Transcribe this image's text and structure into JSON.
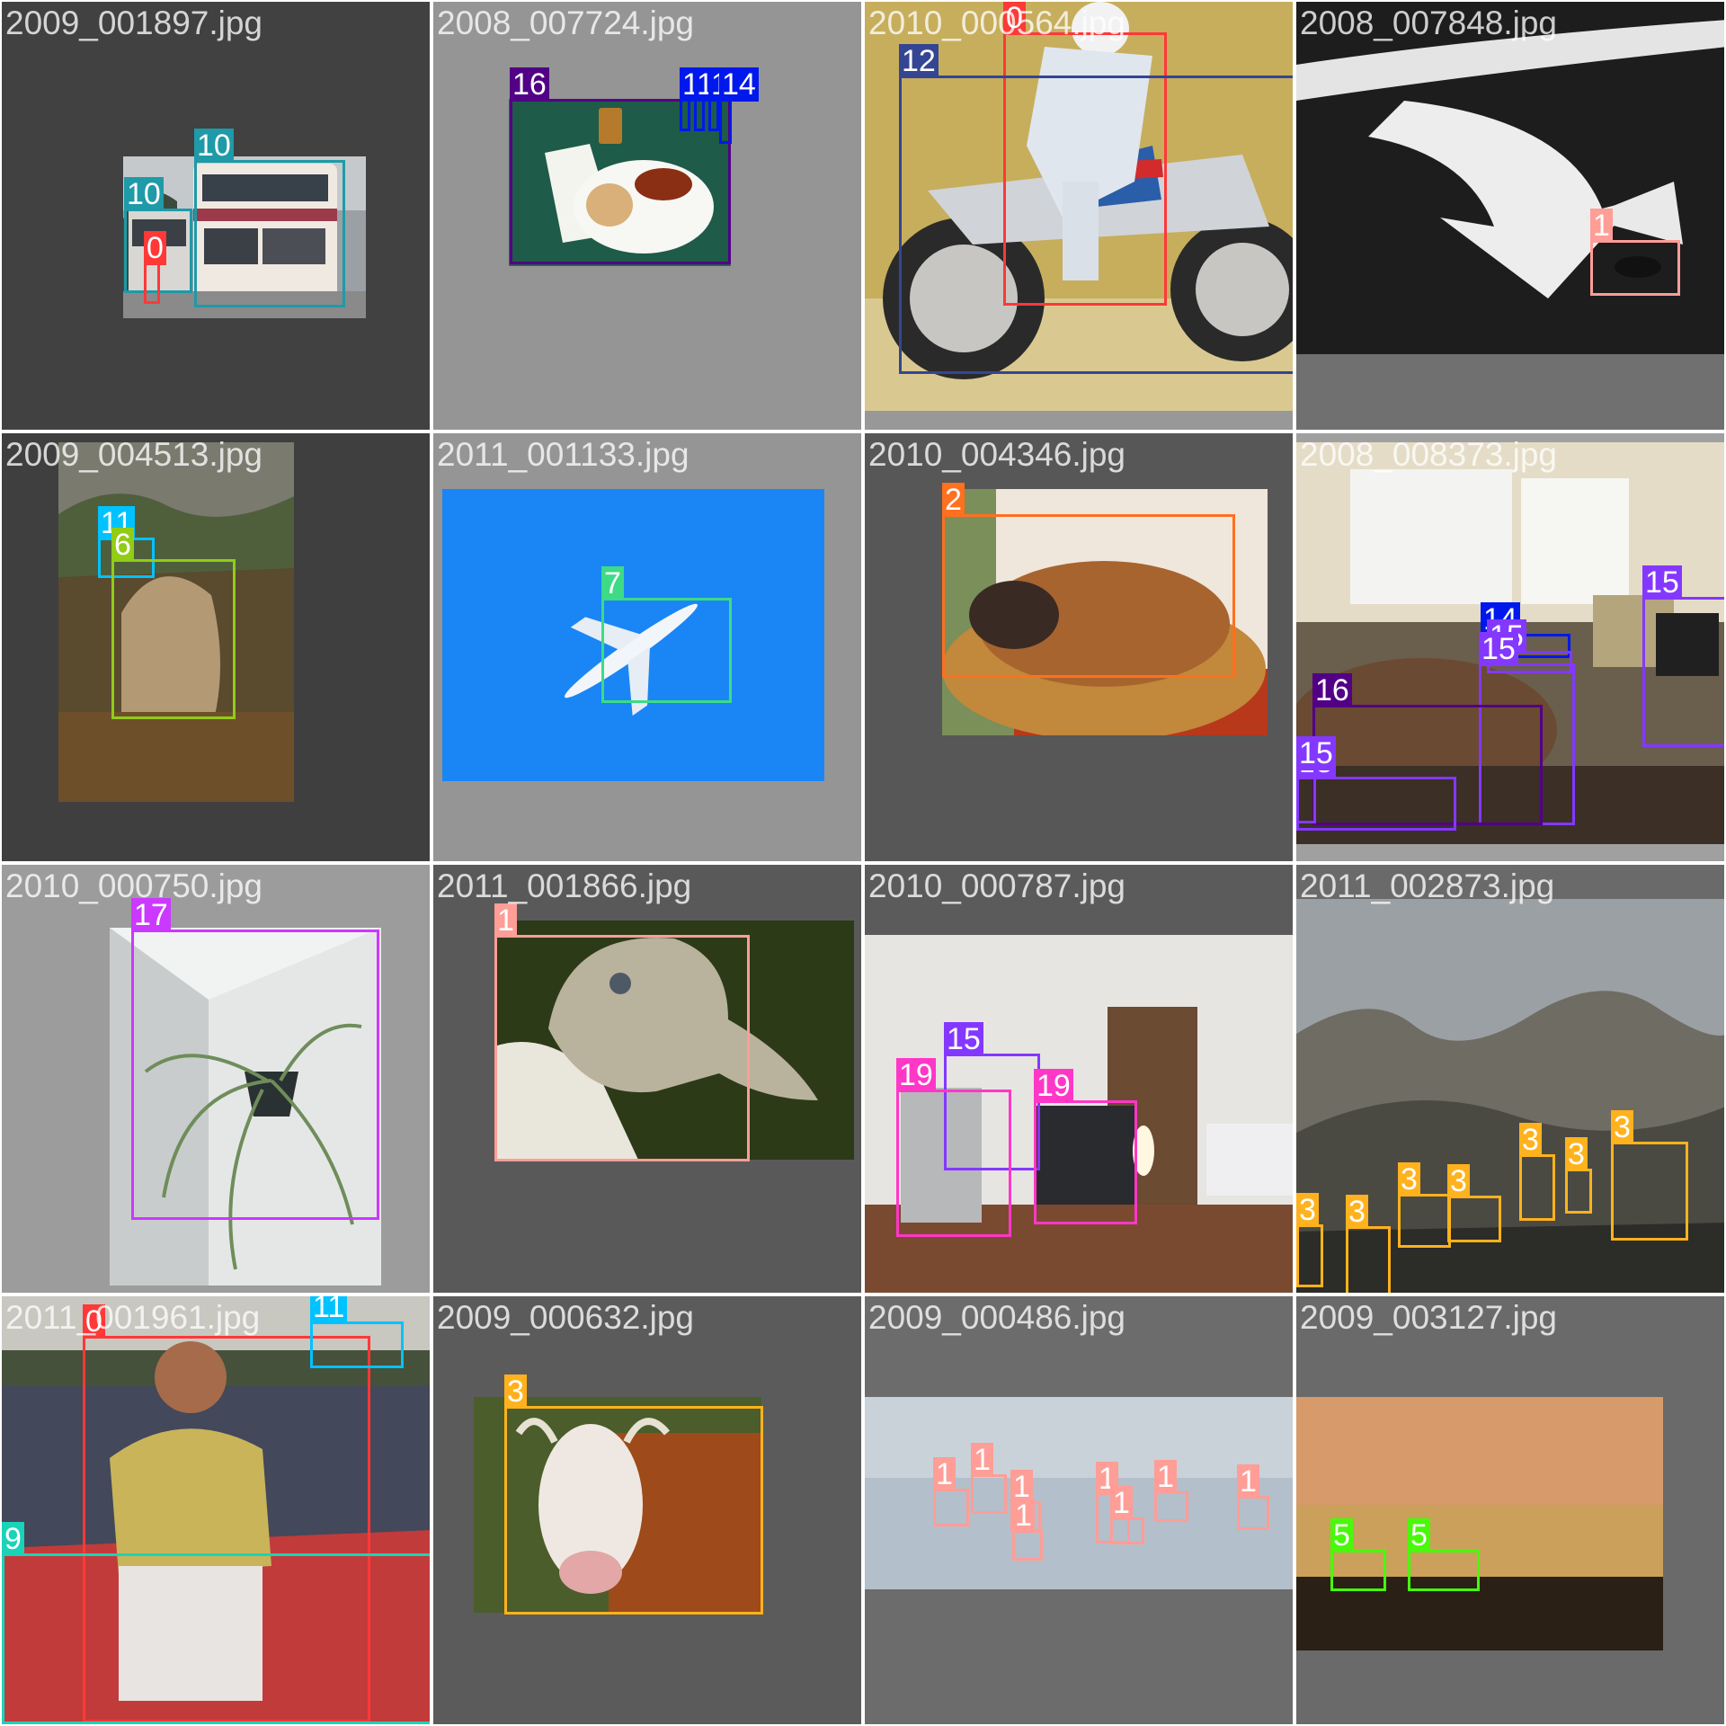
{
  "tiles": [
    {
      "filename": "2009_001897.jpg",
      "bg": "#414141",
      "photo": {
        "scene": "bus"
      },
      "boxes": [
        {
          "label": "10",
          "color": "#1e9aa8"
        },
        {
          "label": "10",
          "color": "#1e9aa8"
        },
        {
          "label": "0",
          "color": "#ff3838"
        }
      ]
    },
    {
      "filename": "2008_007724.jpg",
      "bg": "#959595",
      "photo": {
        "scene": "food"
      },
      "boxes": [
        {
          "label": "16",
          "color": "#520085"
        },
        {
          "label": "14",
          "color": "#0018ec"
        },
        {
          "label": "14",
          "color": "#0018ec"
        },
        {
          "label": "14",
          "color": "#0018ec"
        },
        {
          "label": "14",
          "color": "#0018ec"
        }
      ]
    },
    {
      "filename": "2010_000564.jpg",
      "bg": "#989898",
      "photo": {
        "scene": "motorbike"
      },
      "boxes": [
        {
          "label": "0",
          "color": "#ff3838"
        },
        {
          "label": "12",
          "color": "#344593"
        }
      ]
    },
    {
      "filename": "2008_007848.jpg",
      "bg": "#707070",
      "photo": {
        "scene": "road"
      },
      "boxes": [
        {
          "label": "1",
          "color": "#ff9d97"
        }
      ]
    },
    {
      "filename": "2009_004513.jpg",
      "bg": "#3f3f3f",
      "photo": {
        "scene": "rocks"
      },
      "boxes": [
        {
          "label": "11",
          "color": "#00c2ff"
        },
        {
          "label": "6",
          "color": "#92cc17"
        }
      ]
    },
    {
      "filename": "2011_001133.jpg",
      "bg": "#959595",
      "photo": {
        "scene": "sky"
      },
      "boxes": [
        {
          "label": "7",
          "color": "#3ddb86"
        }
      ]
    },
    {
      "filename": "2010_004346.jpg",
      "bg": "#575757",
      "photo": {
        "scene": "cat"
      },
      "boxes": [
        {
          "label": "2",
          "color": "#ff701f"
        }
      ]
    },
    {
      "filename": "2008_008373.jpg",
      "bg": "#a0a0a0",
      "photo": {
        "scene": "office"
      },
      "boxes": [
        {
          "label": "15",
          "color": "#8438ff"
        },
        {
          "label": "14",
          "color": "#0018ec"
        },
        {
          "label": "15",
          "color": "#8438ff"
        },
        {
          "label": "15",
          "color": "#8438ff"
        },
        {
          "label": "16",
          "color": "#520085"
        },
        {
          "label": "15",
          "color": "#8438ff"
        },
        {
          "label": "15",
          "color": "#8438ff"
        }
      ]
    },
    {
      "filename": "2010_000750.jpg",
      "bg": "#9c9c9c",
      "photo": {
        "scene": "plant"
      },
      "boxes": [
        {
          "label": "17",
          "color": "#cb38ff"
        }
      ]
    },
    {
      "filename": "2011_001866.jpg",
      "bg": "#595959",
      "photo": {
        "scene": "bird"
      },
      "boxes": [
        {
          "label": "1",
          "color": "#ff9d97"
        }
      ]
    },
    {
      "filename": "2010_000787.jpg",
      "bg": "#5b5b5b",
      "photo": {
        "scene": "desk"
      },
      "boxes": [
        {
          "label": "15",
          "color": "#8438ff"
        },
        {
          "label": "19",
          "color": "#ff37c7"
        },
        {
          "label": "19",
          "color": "#ff37c7"
        }
      ]
    },
    {
      "filename": "2011_002873.jpg",
      "bg": "#6a6a6a",
      "photo": {
        "scene": "mountains"
      },
      "boxes": [
        {
          "label": "3",
          "color": "#ffb21d"
        },
        {
          "label": "3",
          "color": "#ffb21d"
        },
        {
          "label": "3",
          "color": "#ffb21d"
        },
        {
          "label": "3",
          "color": "#ffb21d"
        },
        {
          "label": "3",
          "color": "#ffb21d"
        },
        {
          "label": "3",
          "color": "#ffb21d"
        },
        {
          "label": "3",
          "color": "#ffb21d"
        }
      ]
    },
    {
      "filename": "2011_001961.jpg",
      "bg": "#6a6a6a",
      "photo": {
        "scene": "canoe"
      },
      "boxes": [
        {
          "label": "0",
          "color": "#ff3838"
        },
        {
          "label": "11",
          "color": "#00c2ff"
        },
        {
          "label": "9",
          "color": "#1ad3b8"
        }
      ]
    },
    {
      "filename": "2009_000632.jpg",
      "bg": "#5b5b5b",
      "photo": {
        "scene": "cow"
      },
      "boxes": [
        {
          "label": "3",
          "color": "#ffb21d"
        }
      ]
    },
    {
      "filename": "2009_000486.jpg",
      "bg": "#6c6c6c",
      "photo": {
        "scene": "birds-sky"
      },
      "boxes": [
        {
          "label": "1",
          "color": "#ff9d97"
        },
        {
          "label": "1",
          "color": "#ff9d97"
        },
        {
          "label": "1",
          "color": "#ff9d97"
        },
        {
          "label": "1",
          "color": "#ff9d97"
        },
        {
          "label": "1",
          "color": "#ff9d97"
        },
        {
          "label": "1",
          "color": "#ff9d97"
        },
        {
          "label": "1",
          "color": "#ff9d97"
        },
        {
          "label": "1",
          "color": "#ff9d97"
        },
        {
          "label": "1",
          "color": "#ff9d97"
        }
      ]
    },
    {
      "filename": "2009_003127.jpg",
      "bg": "#6a6a6a",
      "photo": {
        "scene": "sunset"
      },
      "boxes": [
        {
          "label": "5",
          "color": "#48f90a"
        },
        {
          "label": "5",
          "color": "#48f90a"
        }
      ]
    }
  ]
}
